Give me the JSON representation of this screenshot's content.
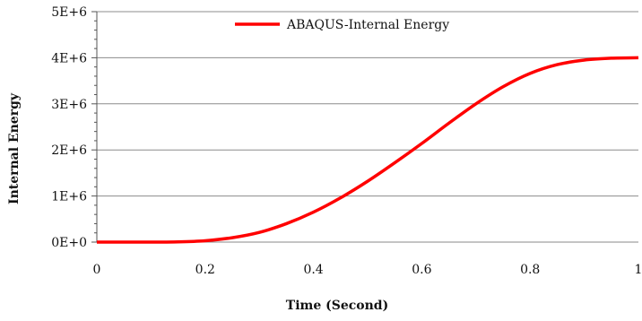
{
  "chart_data": {
    "type": "line",
    "title": "",
    "xlabel": "Time (Second)",
    "ylabel": "Internal Energy",
    "xlim": [
      0,
      1
    ],
    "ylim": [
      0,
      5000000
    ],
    "x_ticks": [
      0,
      0.2,
      0.4,
      0.6,
      0.8,
      1
    ],
    "x_tick_labels": [
      "0",
      "0.2",
      "0.4",
      "0.6",
      "0.8",
      "1"
    ],
    "y_ticks": [
      0,
      1000000,
      2000000,
      3000000,
      4000000,
      5000000
    ],
    "y_tick_labels": [
      "0E+0",
      "1E+6",
      "2E+6",
      "3E+6",
      "4E+6",
      "5E+6"
    ],
    "grid": "horizontal",
    "legend_position": "top-center",
    "series": [
      {
        "name": "ABAQUS-Internal Energy",
        "color": "#ff0000",
        "x": [
          0,
          0.05,
          0.1,
          0.15,
          0.2,
          0.25,
          0.3,
          0.35,
          0.4,
          0.45,
          0.5,
          0.55,
          0.6,
          0.65,
          0.7,
          0.75,
          0.8,
          0.85,
          0.9,
          0.95,
          1
        ],
        "y": [
          0,
          0,
          0,
          5000,
          30000,
          95000,
          210000,
          400000,
          650000,
          960000,
          1320000,
          1720000,
          2140000,
          2580000,
          3000000,
          3370000,
          3660000,
          3850000,
          3950000,
          3990000,
          4000000
        ]
      }
    ]
  }
}
